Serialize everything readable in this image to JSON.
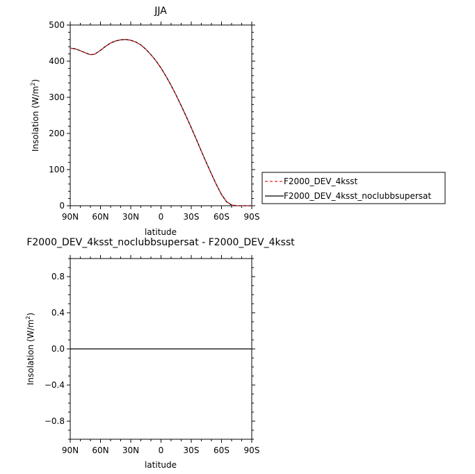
{
  "chart_data": [
    {
      "type": "line",
      "title": "JJA",
      "xlabel": "latitude",
      "ylabel": "Insolation (W/m²)",
      "ylabel_parts": [
        "Insolation (W/m",
        "2",
        ")"
      ],
      "xlim": [
        90,
        -90
      ],
      "ylim": [
        0,
        500
      ],
      "x_ticks": [
        90,
        60,
        30,
        0,
        -30,
        -60,
        -90
      ],
      "x_tick_labels": [
        "90N",
        "60N",
        "30N",
        "0",
        "30S",
        "60S",
        "90S"
      ],
      "y_ticks": [
        0,
        100,
        200,
        300,
        400,
        500
      ],
      "y_tick_labels": [
        "0",
        "100",
        "200",
        "300",
        "400",
        "500"
      ],
      "legend_position": "right",
      "series": [
        {
          "name": "F2000_DEV_4ksst",
          "color": "#e8232a",
          "style": "dashed",
          "x": [
            90,
            85,
            80,
            75,
            70,
            66,
            60,
            55,
            50,
            45,
            40,
            35,
            30,
            25,
            20,
            15,
            10,
            5,
            0,
            -5,
            -10,
            -15,
            -20,
            -25,
            -30,
            -35,
            -40,
            -45,
            -50,
            -55,
            -60,
            -65,
            -70,
            -75,
            -80,
            -85,
            -90
          ],
          "y": [
            436,
            434,
            429,
            423,
            418,
            419,
            430,
            441,
            450,
            456,
            459,
            460,
            458,
            453,
            445,
            433,
            418,
            401,
            381,
            358,
            333,
            306,
            277,
            247,
            216,
            184,
            151,
            119,
            88,
            58,
            31,
            11,
            2,
            0,
            0,
            0,
            0
          ]
        },
        {
          "name": "F2000_DEV_4ksst_noclubbsupersat",
          "color": "#000000",
          "style": "solid",
          "x": [
            90,
            85,
            80,
            75,
            70,
            66,
            60,
            55,
            50,
            45,
            40,
            35,
            30,
            25,
            20,
            15,
            10,
            5,
            0,
            -5,
            -10,
            -15,
            -20,
            -25,
            -30,
            -35,
            -40,
            -45,
            -50,
            -55,
            -60,
            -65,
            -70,
            -75,
            -80,
            -85,
            -90
          ],
          "y": [
            436,
            434,
            429,
            423,
            418,
            419,
            430,
            441,
            450,
            456,
            459,
            460,
            458,
            453,
            445,
            433,
            418,
            401,
            381,
            358,
            333,
            306,
            277,
            247,
            216,
            184,
            151,
            119,
            88,
            58,
            31,
            11,
            2,
            0,
            0,
            0,
            0
          ]
        }
      ]
    },
    {
      "type": "line",
      "title": "F2000_DEV_4ksst_noclubbsupersat - F2000_DEV_4ksst",
      "xlabel": "latitude",
      "ylabel": "Insolation (W/m²)",
      "ylabel_parts": [
        "Insolation (W/m",
        "2",
        ")"
      ],
      "xlim": [
        90,
        -90
      ],
      "ylim": [
        -1,
        1
      ],
      "x_ticks": [
        90,
        60,
        30,
        0,
        -30,
        -60,
        -90
      ],
      "x_tick_labels": [
        "90N",
        "60N",
        "30N",
        "0",
        "30S",
        "60S",
        "90S"
      ],
      "y_ticks": [
        -0.8,
        -0.4,
        0.0,
        0.4,
        0.8
      ],
      "y_tick_labels": [
        "−0.8",
        "−0.4",
        "0.0",
        "0.4",
        "0.8"
      ],
      "series": [
        {
          "color": "#000000",
          "style": "solid",
          "x": [
            90,
            -90
          ],
          "y": [
            0,
            0
          ]
        }
      ]
    }
  ]
}
